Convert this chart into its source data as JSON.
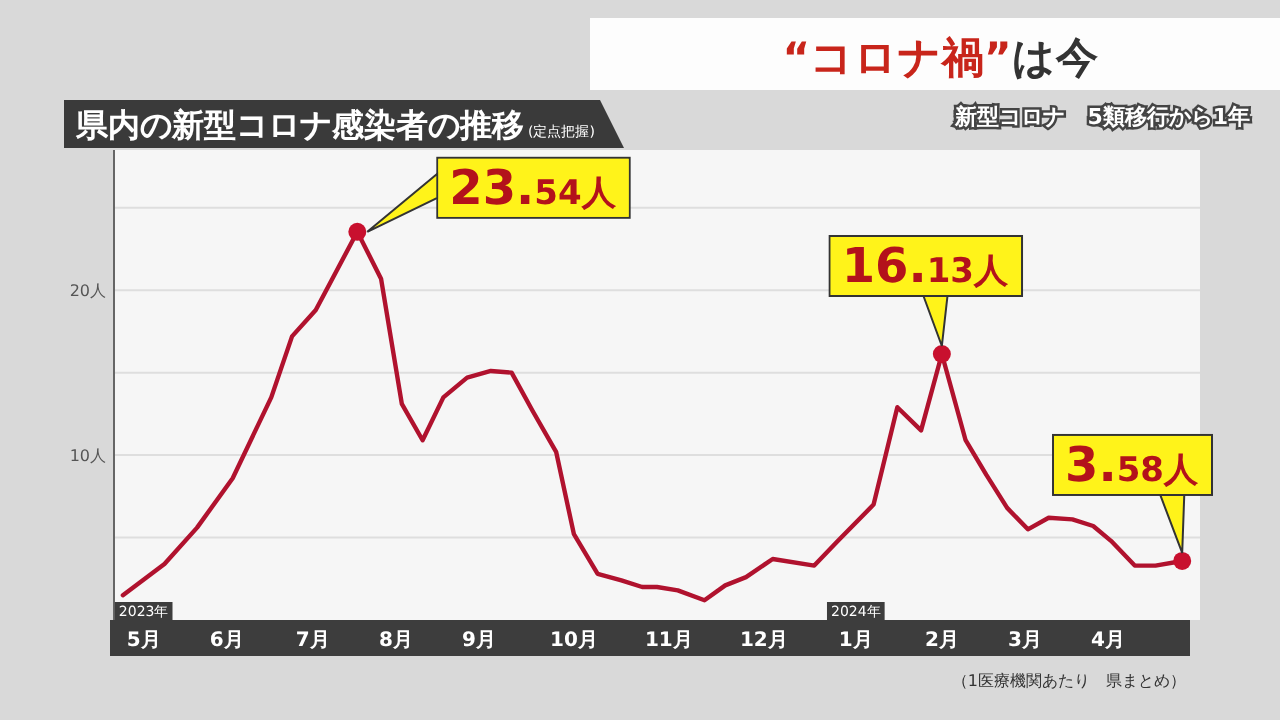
{
  "chart_data": {
    "type": "line",
    "title": "県内の新型コロナ感染者の推移",
    "subtitle": "(定点把握)",
    "x": [
      "2023-05-08",
      "2023-05-22",
      "2023-06-02",
      "2023-06-14",
      "2023-06-27",
      "2023-07-04",
      "2023-07-12",
      "2023-07-26",
      "2023-08-03",
      "2023-08-10",
      "2023-08-17",
      "2023-08-24",
      "2023-09-01",
      "2023-09-09",
      "2023-09-16",
      "2023-09-23",
      "2023-10-01",
      "2023-10-07",
      "2023-10-15",
      "2023-10-23",
      "2023-10-30",
      "2023-11-04",
      "2023-11-11",
      "2023-11-20",
      "2023-11-27",
      "2023-12-04",
      "2023-12-13",
      "2023-12-27",
      "2024-01-04",
      "2024-01-16",
      "2024-01-24",
      "2024-02-01",
      "2024-02-08",
      "2024-02-16",
      "2024-02-23",
      "2024-03-01",
      "2024-03-08",
      "2024-03-15",
      "2024-03-23",
      "2024-03-30",
      "2024-04-05",
      "2024-04-13",
      "2024-04-20",
      "2024-04-29"
    ],
    "series": [
      {
        "color": "#b0122e",
        "values": [
          1.5,
          3.4,
          5.6,
          8.6,
          13.5,
          17.2,
          18.8,
          23.54,
          20.7,
          13.1,
          10.9,
          13.5,
          14.7,
          15.1,
          15.0,
          12.7,
          10.2,
          5.2,
          2.8,
          2.4,
          2.0,
          2.0,
          1.8,
          1.2,
          2.1,
          2.6,
          3.7,
          3.3,
          4.8,
          7.0,
          12.9,
          11.5,
          16.13,
          10.9,
          8.8,
          6.8,
          5.5,
          6.2,
          6.1,
          5.7,
          4.8,
          3.3,
          3.3,
          3.58
        ]
      }
    ],
    "xlim": [
      "2023-05-05",
      "2024-05-05"
    ],
    "xticks": [
      {
        "value": "2023-05-15",
        "label": "5月"
      },
      {
        "value": "2023-06-12",
        "label": "6月"
      },
      {
        "value": "2023-07-11",
        "label": "7月"
      },
      {
        "value": "2023-08-08",
        "label": "8月"
      },
      {
        "value": "2023-09-05",
        "label": "9月"
      },
      {
        "value": "2023-10-07",
        "label": "10月"
      },
      {
        "value": "2023-11-08",
        "label": "11月"
      },
      {
        "value": "2023-12-10",
        "label": "12月"
      },
      {
        "value": "2024-01-10",
        "label": "1月"
      },
      {
        "value": "2024-02-08",
        "label": "2月"
      },
      {
        "value": "2024-03-07",
        "label": "3月"
      },
      {
        "value": "2024-04-04",
        "label": "4月"
      }
    ],
    "ylim": [
      0,
      28.5
    ],
    "yticks": [
      {
        "value": 5,
        "label": null
      },
      {
        "value": 10,
        "label": "10人"
      },
      {
        "value": 15,
        "label": null
      },
      {
        "value": 20,
        "label": "20人"
      },
      {
        "value": 25,
        "label": null
      }
    ],
    "grid": "y",
    "annotations": [
      "“コロナ禍”は今",
      "新型コロナ　5類移行から1年",
      "（1医療機関あたり　県まとめ）",
      {
        "text": "23.54人",
        "x": "2023-07-26",
        "y": 23.54
      },
      {
        "text": "16.13人",
        "x": "2024-02-08",
        "y": 16.13
      },
      {
        "text": "3.58人",
        "x": "2024-04-29",
        "y": 3.58
      },
      {
        "text": "2023年",
        "x": "2023-05-15"
      },
      {
        "text": "2024年",
        "x": "2024-01-10"
      }
    ]
  }
}
